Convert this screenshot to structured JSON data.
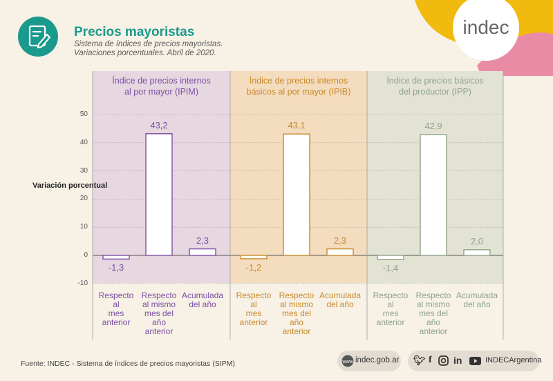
{
  "header": {
    "title": "Precios mayoristas",
    "subtitle_line1": "Sistema de índices de precios mayoristas.",
    "subtitle_line2": "Variaciones porcentuales. Abril de 2020.",
    "brand": "indec"
  },
  "colors": {
    "teal": "#1a9a8c",
    "ipim": "#7d4fa6",
    "ipib": "#c98a2a",
    "ipp": "#8fa38a",
    "ipim_bg": "#e6d7e0",
    "ipib_bg": "#f4dcbf",
    "ipp_bg": "#e3e3d4"
  },
  "chart_data": {
    "type": "bar",
    "ylabel": "Variación porcentual",
    "ylim": [
      -10,
      50
    ],
    "yticks": [
      "50",
      "40",
      "30",
      "20",
      "10",
      "0",
      "-10"
    ],
    "categories": [
      "Respecto al mes anterior",
      "Respecto al mismo mes del año anterior",
      "Acumulada del año"
    ],
    "category_lines": [
      [
        "Respecto",
        "al",
        "mes",
        "anterior"
      ],
      [
        "Respecto",
        "al mismo",
        "mes del",
        "año",
        "anterior"
      ],
      [
        "Acumulada",
        "del año"
      ]
    ],
    "series": [
      {
        "name": "Índice de precios internos al por mayor (IPIM)",
        "title_lines": [
          "Índice de precios internos",
          "al por mayor (IPIM)"
        ],
        "values": [
          -1.3,
          43.2,
          2.3
        ],
        "labels": [
          "-1,3",
          "43,2",
          "2,3"
        ]
      },
      {
        "name": "Índice de precios internos básicos al por mayor (IPIB)",
        "title_lines": [
          "Índice de precios internos",
          "básicos al por mayor (IPIB)"
        ],
        "values": [
          -1.2,
          43.1,
          2.3
        ],
        "labels": [
          "-1,2",
          "43,1",
          "2,3"
        ]
      },
      {
        "name": "Índice de precios básicos del productor (IPP)",
        "title_lines": [
          "Índice de precios básicos",
          "del productor (IPP)"
        ],
        "values": [
          -1.4,
          42.9,
          2.0
        ],
        "labels": [
          "-1,4",
          "42,9",
          "2,0"
        ]
      }
    ]
  },
  "footer": {
    "source": "Fuente: INDEC - Sistema de índices de precios mayoristas (SIPM)",
    "website": "indec.gob.ar",
    "social_handle": "INDECArgentina",
    "social_icons": [
      "twitter-icon",
      "facebook-icon",
      "instagram-icon",
      "linkedin-icon",
      "youtube-icon"
    ]
  }
}
